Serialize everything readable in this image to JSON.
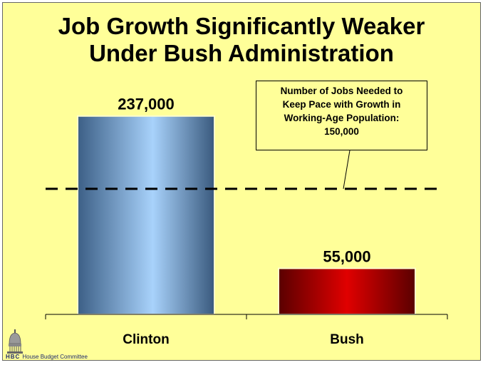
{
  "title_line1": "Job Growth Significantly Weaker",
  "title_line2": "Under Bush Administration",
  "chart_data": {
    "type": "bar",
    "categories": [
      "Clinton",
      "Bush"
    ],
    "values": [
      237000,
      55000
    ],
    "value_labels": [
      "237,000",
      "55,000"
    ],
    "reference_line": {
      "value": 150000,
      "style": "dashed"
    },
    "ylim": [
      0,
      270000
    ],
    "title": "Job Growth Significantly Weaker Under Bush Administration",
    "xlabel": "",
    "ylabel": "",
    "grid": false,
    "colors": {
      "Clinton": "#8fb8e6",
      "Bush": "#b30000"
    }
  },
  "callout": {
    "lines": [
      "Number of Jobs Needed to",
      "Keep Pace with Growth in",
      "Working-Age Population:",
      "150,000"
    ]
  },
  "footer": {
    "logo_icon": "capitol-dome-icon",
    "logo_letters": "HBC",
    "org_name": "House Budget Committee"
  },
  "colors": {
    "background": "#ffff99",
    "clinton_bar": "#8fb8e6",
    "bush_bar": "#b30000"
  }
}
